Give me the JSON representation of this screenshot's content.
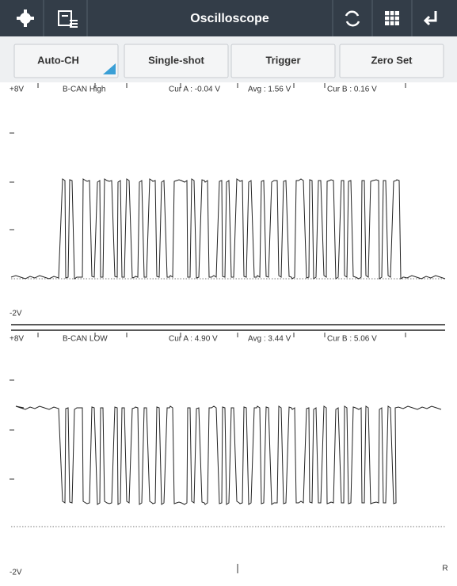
{
  "header": {
    "title": "Oscilloscope"
  },
  "buttons": [
    "Auto-CH",
    "Single-shot",
    "Trigger",
    "Zero Set"
  ],
  "channels": [
    {
      "top": "+8V",
      "name": "B-CAN High",
      "cur_a": "Cur A : -0.04 V",
      "avg": "Avg : 1.56 V",
      "cur_b": "Cur B : 0.16 V",
      "bottom": "-2V"
    },
    {
      "top": "+8V",
      "name": "B-CAN LOW",
      "cur_a": "Cur A : 4.90 V",
      "avg": "Avg : 3.44 V",
      "cur_b": "Cur B : 5.06 V",
      "bottom": "-2V"
    }
  ],
  "corner": "R"
}
